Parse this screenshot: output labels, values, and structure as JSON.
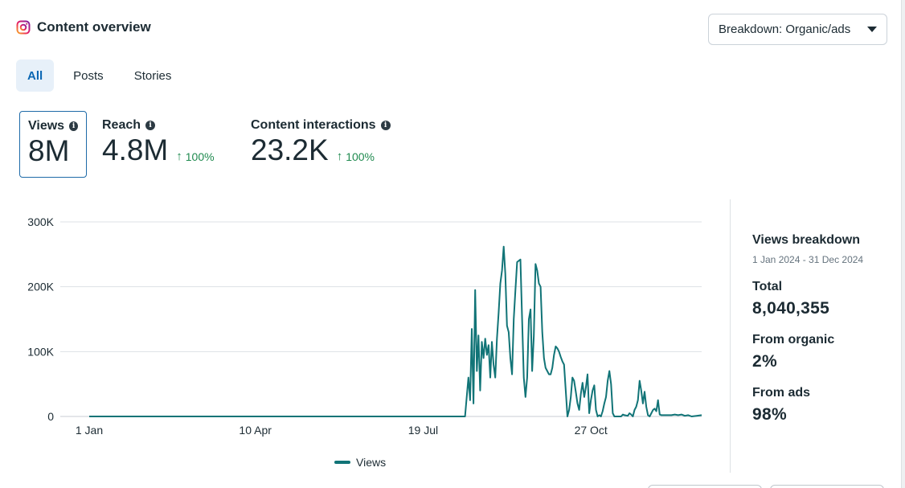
{
  "header": {
    "title": "Content overview",
    "breakdown_label": "Breakdown: Organic/ads"
  },
  "tabs": [
    {
      "label": "All"
    },
    {
      "label": "Posts"
    },
    {
      "label": "Stories"
    }
  ],
  "metrics": [
    {
      "label": "Views",
      "value": "8M",
      "change": ""
    },
    {
      "label": "Reach",
      "value": "4.8M",
      "change": "100%"
    },
    {
      "label": "Content interactions",
      "value": "23.2K",
      "change": "100%"
    }
  ],
  "colors": {
    "series": "#117477",
    "accent": "#0a66b3",
    "positive": "#1f8a4f"
  },
  "chart_data": {
    "type": "line",
    "title": "",
    "xlabel": "",
    "ylabel": "",
    "ylim": [
      0,
      300000
    ],
    "y_ticks": [
      {
        "value": 0,
        "label": "0"
      },
      {
        "value": 100000,
        "label": "100K"
      },
      {
        "value": 200000,
        "label": "200K"
      },
      {
        "value": 300000,
        "label": "300K"
      }
    ],
    "x_ticks": [
      {
        "day": 1,
        "label": "1 Jan"
      },
      {
        "day": 100,
        "label": "10 Apr"
      },
      {
        "day": 200,
        "label": "19 Jul"
      },
      {
        "day": 300,
        "label": "27 Oct"
      }
    ],
    "x_range_days": [
      1,
      366
    ],
    "legend": {
      "label": "Views",
      "position": "bottom-center"
    },
    "series": [
      {
        "name": "Views",
        "points": [
          [
            1,
            0
          ],
          [
            225,
            0
          ],
          [
            227,
            60000
          ],
          [
            228,
            25000
          ],
          [
            229,
            135000
          ],
          [
            230,
            20000
          ],
          [
            231,
            195000
          ],
          [
            232,
            70000
          ],
          [
            233,
            125000
          ],
          [
            234,
            40000
          ],
          [
            235,
            115000
          ],
          [
            236,
            90000
          ],
          [
            237,
            120000
          ],
          [
            238,
            95000
          ],
          [
            239,
            110000
          ],
          [
            240,
            60000
          ],
          [
            241,
            115000
          ],
          [
            242,
            80000
          ],
          [
            243,
            60000
          ],
          [
            244,
            120000
          ],
          [
            245,
            160000
          ],
          [
            246,
            205000
          ],
          [
            247,
            225000
          ],
          [
            248,
            262000
          ],
          [
            249,
            220000
          ],
          [
            250,
            140000
          ],
          [
            251,
            130000
          ],
          [
            252,
            90000
          ],
          [
            253,
            65000
          ],
          [
            254,
            150000
          ],
          [
            255,
            195000
          ],
          [
            256,
            238000
          ],
          [
            257,
            240000
          ],
          [
            258,
            242000
          ],
          [
            259,
            150000
          ],
          [
            260,
            60000
          ],
          [
            261,
            30000
          ],
          [
            262,
            60000
          ],
          [
            263,
            150000
          ],
          [
            264,
            165000
          ],
          [
            265,
            70000
          ],
          [
            266,
            125000
          ],
          [
            267,
            235000
          ],
          [
            268,
            225000
          ],
          [
            269,
            205000
          ],
          [
            270,
            200000
          ],
          [
            271,
            130000
          ],
          [
            272,
            90000
          ],
          [
            273,
            75000
          ],
          [
            274,
            70000
          ],
          [
            275,
            65000
          ],
          [
            276,
            65000
          ],
          [
            277,
            75000
          ],
          [
            278,
            95000
          ],
          [
            279,
            108000
          ],
          [
            280,
            105000
          ],
          [
            281,
            100000
          ],
          [
            282,
            92000
          ],
          [
            283,
            85000
          ],
          [
            284,
            80000
          ],
          [
            285,
            40000
          ],
          [
            286,
            0
          ],
          [
            287,
            10000
          ],
          [
            288,
            30000
          ],
          [
            289,
            60000
          ],
          [
            290,
            55000
          ],
          [
            291,
            38000
          ],
          [
            292,
            20000
          ],
          [
            293,
            10000
          ],
          [
            294,
            35000
          ],
          [
            295,
            52000
          ],
          [
            296,
            30000
          ],
          [
            297,
            45000
          ],
          [
            298,
            65000
          ],
          [
            299,
            5000
          ],
          [
            300,
            25000
          ],
          [
            301,
            40000
          ],
          [
            302,
            48000
          ],
          [
            303,
            10000
          ],
          [
            304,
            0
          ],
          [
            305,
            2000
          ],
          [
            306,
            0
          ],
          [
            307,
            8000
          ],
          [
            308,
            20000
          ],
          [
            309,
            30000
          ],
          [
            310,
            55000
          ],
          [
            311,
            70000
          ],
          [
            312,
            50000
          ],
          [
            313,
            5000
          ],
          [
            314,
            0
          ],
          [
            315,
            0
          ],
          [
            318,
            0
          ],
          [
            319,
            3000
          ],
          [
            320,
            2000
          ],
          [
            322,
            1000
          ],
          [
            323,
            5000
          ],
          [
            324,
            3000
          ],
          [
            325,
            0
          ],
          [
            326,
            10000
          ],
          [
            327,
            15000
          ],
          [
            328,
            25000
          ],
          [
            329,
            55000
          ],
          [
            330,
            40000
          ],
          [
            331,
            20000
          ],
          [
            332,
            38000
          ],
          [
            333,
            15000
          ],
          [
            334,
            2000
          ],
          [
            335,
            0
          ],
          [
            336,
            5000
          ],
          [
            337,
            10000
          ],
          [
            338,
            12000
          ],
          [
            339,
            8000
          ],
          [
            340,
            25000
          ],
          [
            341,
            3000
          ],
          [
            342,
            2000
          ],
          [
            348,
            2000
          ],
          [
            350,
            3000
          ],
          [
            352,
            2000
          ],
          [
            354,
            3000
          ],
          [
            356,
            1000
          ],
          [
            358,
            2000
          ],
          [
            360,
            0
          ],
          [
            363,
            1000
          ],
          [
            366,
            2000
          ]
        ]
      }
    ]
  },
  "breakdown": {
    "title": "Views breakdown",
    "date_range": "1 Jan 2024 - 31 Dec 2024",
    "total_label": "Total",
    "total_value": "8,040,355",
    "organic_label": "From organic",
    "organic_value": "2%",
    "ads_label": "From ads",
    "ads_value": "98%"
  }
}
